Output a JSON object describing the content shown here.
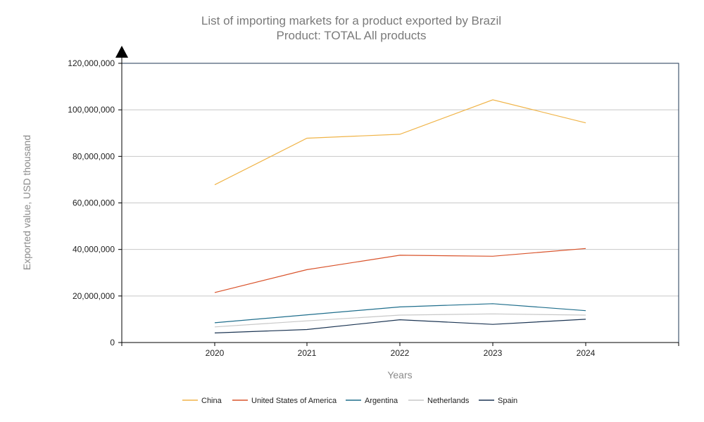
{
  "chart_data": {
    "type": "line",
    "title": "List of importing markets for a product exported by Brazil",
    "subtitle": "Product: TOTAL All products",
    "xlabel": "Years",
    "ylabel": "Exported value, USD thousand",
    "categories": [
      "2020",
      "2021",
      "2022",
      "2023",
      "2024"
    ],
    "ylim": [
      0,
      120000000
    ],
    "yticks": [
      0,
      20000000,
      40000000,
      60000000,
      80000000,
      100000000,
      120000000
    ],
    "ytick_labels": [
      "0",
      "20,000,000",
      "40,000,000",
      "60,000,000",
      "80,000,000",
      "100,000,000",
      "120,000,000"
    ],
    "grid": true,
    "legend_position": "bottom",
    "series": [
      {
        "name": "China",
        "color": "#f0b448",
        "values": [
          67800000,
          87800000,
          89500000,
          104300000,
          94400000
        ]
      },
      {
        "name": "United States of America",
        "color": "#d9532b",
        "values": [
          21500000,
          31300000,
          37500000,
          37100000,
          40400000
        ]
      },
      {
        "name": "Argentina",
        "color": "#1f6e8c",
        "values": [
          8500000,
          11900000,
          15300000,
          16700000,
          13700000
        ]
      },
      {
        "name": "Netherlands",
        "color": "#c8c8c8",
        "values": [
          6700000,
          9300000,
          11800000,
          12300000,
          11800000
        ]
      },
      {
        "name": "Spain",
        "color": "#1c3553",
        "values": [
          4100000,
          5600000,
          9800000,
          7800000,
          10000000
        ]
      }
    ]
  }
}
